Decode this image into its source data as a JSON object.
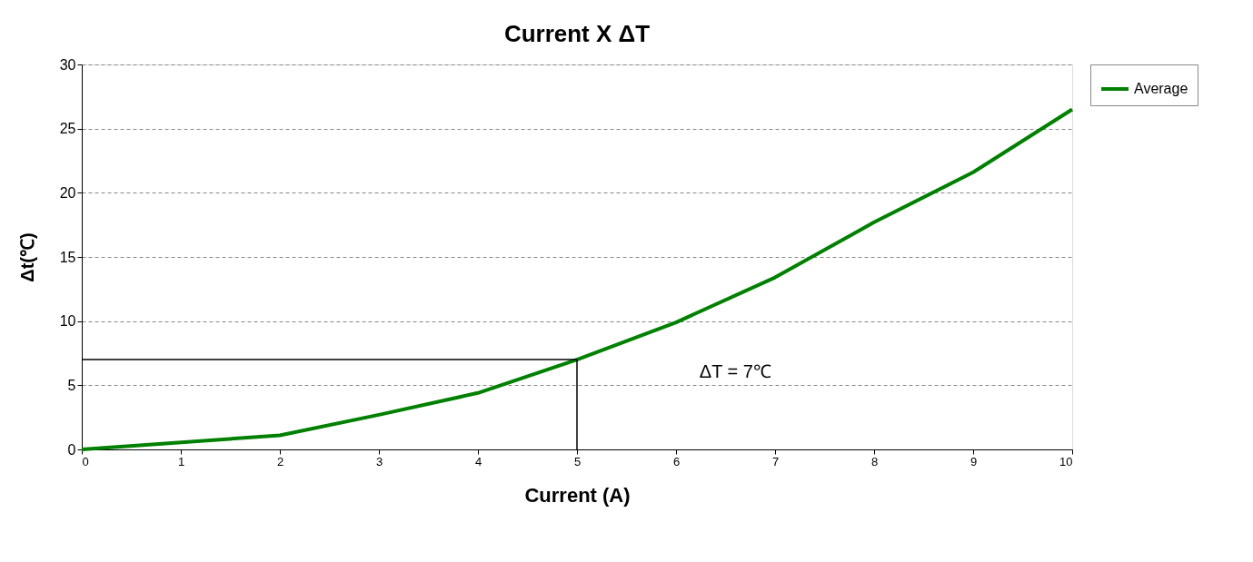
{
  "chart_data": {
    "type": "line",
    "title": "Current X ΔT",
    "xlabel": "Current (A)",
    "ylabel": "Δt(℃)",
    "x": [
      0,
      2,
      3,
      4,
      5,
      6,
      7,
      8,
      9,
      10
    ],
    "series": [
      {
        "name": "Average",
        "color": "#008000",
        "values": [
          0,
          1.1,
          2.7,
          4.4,
          7,
          9.9,
          13.4,
          17.7,
          21.6,
          26.5
        ]
      }
    ],
    "ref_lines": [
      {
        "axis": "y",
        "value": 7,
        "color": "#000000"
      },
      {
        "axis": "x",
        "value": 5,
        "color": "#000000"
      }
    ],
    "annotations": [
      "ΔT = 7℃"
    ],
    "xlim": [
      0,
      10
    ],
    "xticks": [
      0,
      1,
      2,
      3,
      4,
      5,
      6,
      7,
      8,
      9,
      10
    ],
    "ylim": [
      0,
      30
    ],
    "yticks": [
      0,
      5,
      10,
      15,
      20,
      25,
      30
    ],
    "grid": "y",
    "legend": "right",
    "marker": "none",
    "line_style": "solid"
  }
}
